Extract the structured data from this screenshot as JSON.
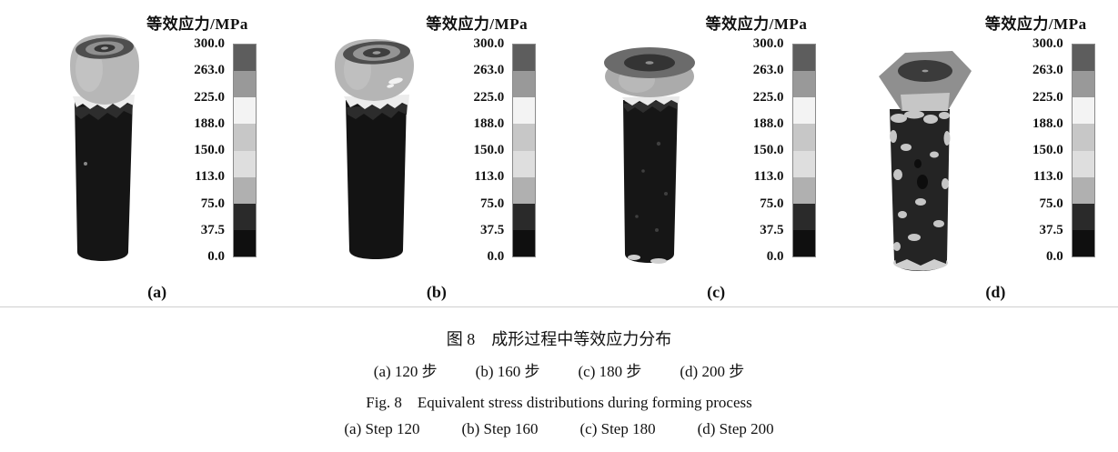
{
  "figure": {
    "legend": {
      "title": "等效应力/MPa",
      "ticks": [
        "300.0",
        "263.0",
        "225.0",
        "188.0",
        "150.0",
        "113.0",
        "75.0",
        "37.5",
        "0.0"
      ],
      "bands": [
        "#5d5d5d",
        "#999999",
        "#f3f3f3",
        "#c7c7c7",
        "#dedede",
        "#b0b0b0",
        "#2a2a2a",
        "#0f0f0f"
      ]
    },
    "panels": [
      {
        "label": "(a)"
      },
      {
        "label": "(b)"
      },
      {
        "label": "(c)"
      },
      {
        "label": "(d)"
      }
    ]
  },
  "caption": {
    "zh_title": "图 8　成形过程中等效应力分布",
    "zh_items": [
      "(a) 120 步",
      "(b) 160 步",
      "(c) 180 步",
      "(d) 200 步"
    ],
    "en_title": "Fig. 8　Equivalent stress distributions during forming process",
    "en_items": [
      "(a) Step 120",
      "(b) Step 160",
      "(c) Step 180",
      "(d) Step 200"
    ]
  }
}
